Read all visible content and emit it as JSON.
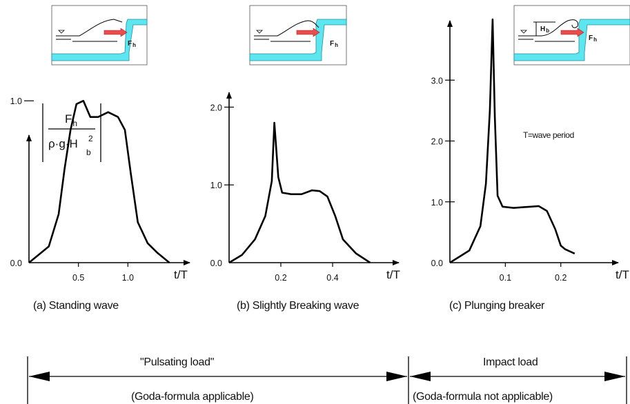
{
  "chart_data": [
    {
      "type": "line",
      "caption": "(a) Standing wave",
      "xlabel": "t/T",
      "ylabel_top": "F",
      "ylabel_top_sub": "h",
      "ylabel_bottom": "ρ·g·H",
      "ylabel_bottom_sup": "2",
      "ylabel_bottom_sub": "b",
      "x_ticks": [
        "0.5",
        "1.0"
      ],
      "y_ticks": [
        "0.0",
        "1.0"
      ],
      "xlim": [
        0,
        1.5
      ],
      "ylim": [
        0,
        1.15
      ],
      "inset_label": "F",
      "inset_label_sub": "h",
      "series": [
        {
          "x": [
            0.0,
            0.2,
            0.3,
            0.36,
            0.42,
            0.48,
            0.55,
            0.62,
            0.7,
            0.8,
            0.9,
            0.97,
            1.03,
            1.1,
            1.2,
            1.3,
            1.42
          ],
          "y": [
            0.0,
            0.1,
            0.3,
            0.58,
            0.82,
            0.98,
            1.0,
            0.9,
            0.9,
            0.93,
            0.9,
            0.82,
            0.55,
            0.25,
            0.12,
            0.06,
            0.0
          ]
        }
      ]
    },
    {
      "type": "line",
      "caption": "(b) Slightly Breaking wave",
      "xlabel": "t/T",
      "x_ticks": [
        "0.2",
        "0.4"
      ],
      "y_ticks": [
        "0.0",
        "1.0",
        "2.0"
      ],
      "xlim": [
        0,
        0.6
      ],
      "ylim": [
        0,
        2.5
      ],
      "inset_label": "F",
      "inset_label_sub": "h",
      "series": [
        {
          "x": [
            0.0,
            0.05,
            0.1,
            0.14,
            0.165,
            0.175,
            0.19,
            0.205,
            0.24,
            0.28,
            0.32,
            0.35,
            0.38,
            0.41,
            0.44,
            0.49,
            0.545
          ],
          "y": [
            0.0,
            0.1,
            0.3,
            0.6,
            1.05,
            1.8,
            1.1,
            0.9,
            0.88,
            0.88,
            0.93,
            0.92,
            0.85,
            0.6,
            0.3,
            0.12,
            0.0
          ]
        }
      ]
    },
    {
      "type": "line",
      "caption": "(c) Plunging breaker",
      "xlabel": "t/T",
      "annotation": "T=wave period",
      "x_ticks": [
        "0.1",
        "0.2"
      ],
      "y_ticks": [
        "0.0",
        "1.0",
        "2.0",
        "3.0"
      ],
      "xlim": [
        0,
        0.28
      ],
      "ylim": [
        0,
        4.0
      ],
      "inset_label": "F",
      "inset_label_sub": "h",
      "inset_label2": "H",
      "inset_label2_sub": "b",
      "series": [
        {
          "x": [
            0.0,
            0.035,
            0.055,
            0.065,
            0.072,
            0.077,
            0.081,
            0.086,
            0.095,
            0.115,
            0.16,
            0.175,
            0.19,
            0.2,
            0.208,
            0.225
          ],
          "y": [
            0.0,
            0.2,
            0.6,
            1.3,
            2.5,
            4.0,
            2.4,
            1.1,
            0.92,
            0.9,
            0.93,
            0.85,
            0.55,
            0.28,
            0.22,
            0.15
          ]
        }
      ]
    }
  ],
  "load_ranges": [
    {
      "title": "\"Pulsating load\"",
      "subtitle": "(Goda-formula applicable)"
    },
    {
      "title": "Impact load",
      "subtitle": "(Goda-formula not applicable)"
    }
  ]
}
